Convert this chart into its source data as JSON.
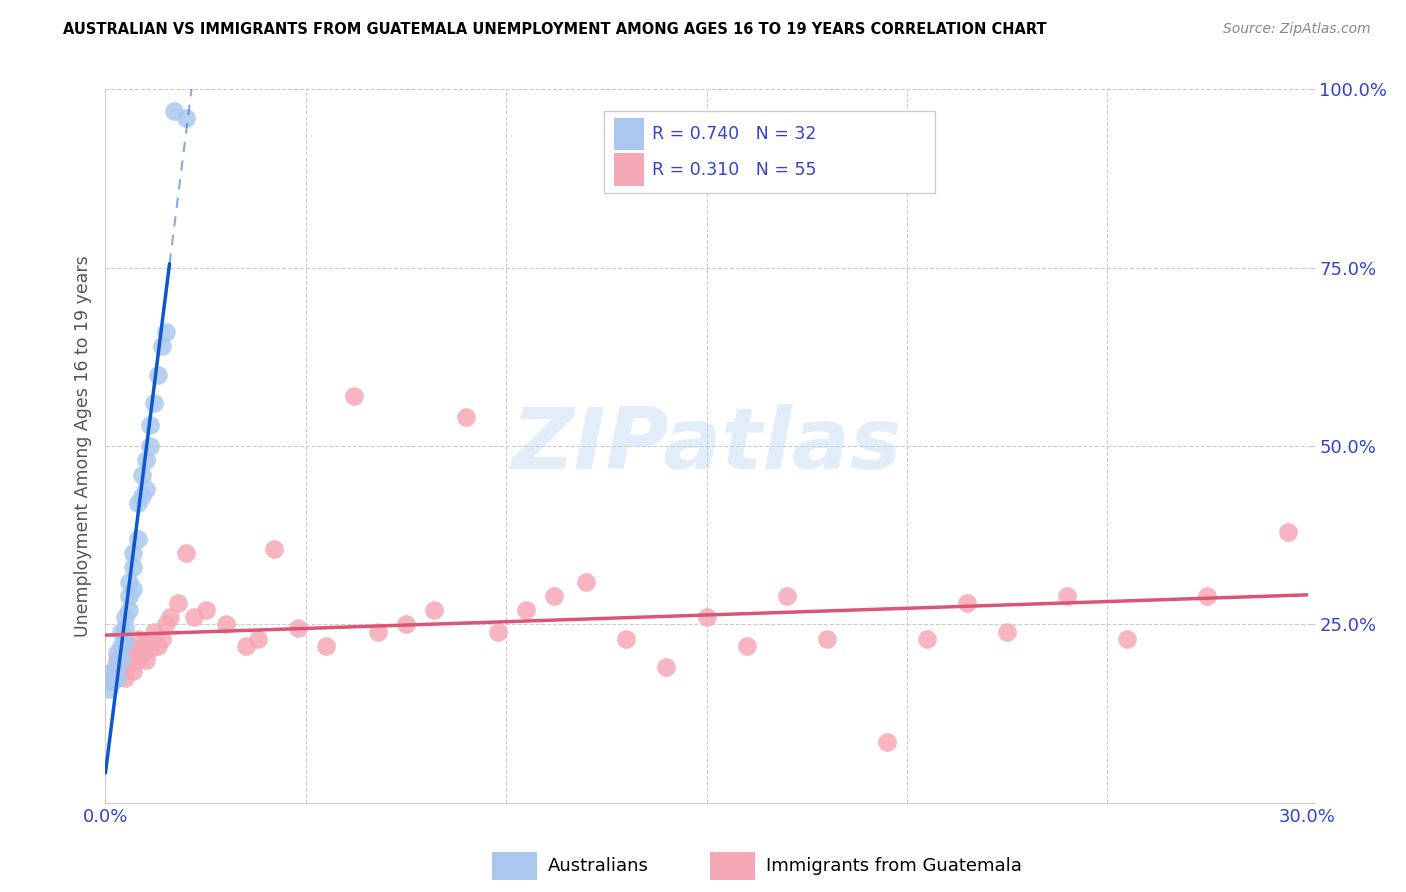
{
  "title": "AUSTRALIAN VS IMMIGRANTS FROM GUATEMALA UNEMPLOYMENT AMONG AGES 16 TO 19 YEARS CORRELATION CHART",
  "source": "Source: ZipAtlas.com",
  "ylabel": "Unemployment Among Ages 16 to 19 years",
  "x_min": 0.0,
  "x_max": 0.3,
  "y_min": 0.0,
  "y_max": 1.0,
  "x_ticks": [
    0.0,
    0.05,
    0.1,
    0.15,
    0.2,
    0.25,
    0.3
  ],
  "y_ticks": [
    0.0,
    0.25,
    0.5,
    0.75,
    1.0
  ],
  "y_tick_labels": [
    "",
    "25.0%",
    "50.0%",
    "75.0%",
    "100.0%"
  ],
  "blue_R": 0.74,
  "blue_N": 32,
  "pink_R": 0.31,
  "pink_N": 55,
  "blue_color": "#aac8ee",
  "blue_line_color": "#1155cc",
  "pink_color": "#f5a8b5",
  "pink_line_color": "#dd5575",
  "legend_label_blue": "Australians",
  "legend_label_pink": "Immigrants from Guatemala",
  "watermark_color": "#b8d4f0",
  "blue_scatter_x": [
    0.001,
    0.002,
    0.002,
    0.003,
    0.003,
    0.003,
    0.004,
    0.004,
    0.004,
    0.005,
    0.005,
    0.005,
    0.006,
    0.006,
    0.006,
    0.007,
    0.007,
    0.007,
    0.008,
    0.008,
    0.009,
    0.009,
    0.01,
    0.01,
    0.011,
    0.011,
    0.012,
    0.013,
    0.014,
    0.015,
    0.017,
    0.02
  ],
  "blue_scatter_y": [
    0.16,
    0.17,
    0.185,
    0.175,
    0.195,
    0.21,
    0.2,
    0.22,
    0.24,
    0.225,
    0.245,
    0.26,
    0.27,
    0.29,
    0.31,
    0.3,
    0.33,
    0.35,
    0.37,
    0.42,
    0.43,
    0.46,
    0.44,
    0.48,
    0.5,
    0.53,
    0.56,
    0.6,
    0.64,
    0.66,
    0.97,
    0.96
  ],
  "pink_scatter_x": [
    0.001,
    0.002,
    0.003,
    0.003,
    0.004,
    0.005,
    0.005,
    0.006,
    0.006,
    0.007,
    0.007,
    0.008,
    0.008,
    0.009,
    0.01,
    0.01,
    0.011,
    0.012,
    0.013,
    0.014,
    0.015,
    0.016,
    0.018,
    0.02,
    0.022,
    0.025,
    0.03,
    0.035,
    0.038,
    0.042,
    0.048,
    0.055,
    0.062,
    0.068,
    0.075,
    0.082,
    0.09,
    0.098,
    0.105,
    0.112,
    0.12,
    0.13,
    0.14,
    0.15,
    0.16,
    0.17,
    0.18,
    0.195,
    0.205,
    0.215,
    0.225,
    0.24,
    0.255,
    0.275,
    0.295
  ],
  "pink_scatter_y": [
    0.17,
    0.185,
    0.175,
    0.2,
    0.19,
    0.175,
    0.21,
    0.195,
    0.22,
    0.185,
    0.215,
    0.2,
    0.23,
    0.21,
    0.2,
    0.225,
    0.215,
    0.24,
    0.22,
    0.23,
    0.25,
    0.26,
    0.28,
    0.35,
    0.26,
    0.27,
    0.25,
    0.22,
    0.23,
    0.355,
    0.245,
    0.22,
    0.57,
    0.24,
    0.25,
    0.27,
    0.54,
    0.24,
    0.27,
    0.29,
    0.31,
    0.23,
    0.19,
    0.26,
    0.22,
    0.29,
    0.23,
    0.085,
    0.23,
    0.28,
    0.24,
    0.29,
    0.23,
    0.29,
    0.38
  ],
  "blue_line_x_start": 0.0,
  "blue_line_x_solid_end": 0.016,
  "blue_line_x_dash_end": 0.028,
  "pink_line_x_start": 0.0,
  "pink_line_x_end": 0.3
}
